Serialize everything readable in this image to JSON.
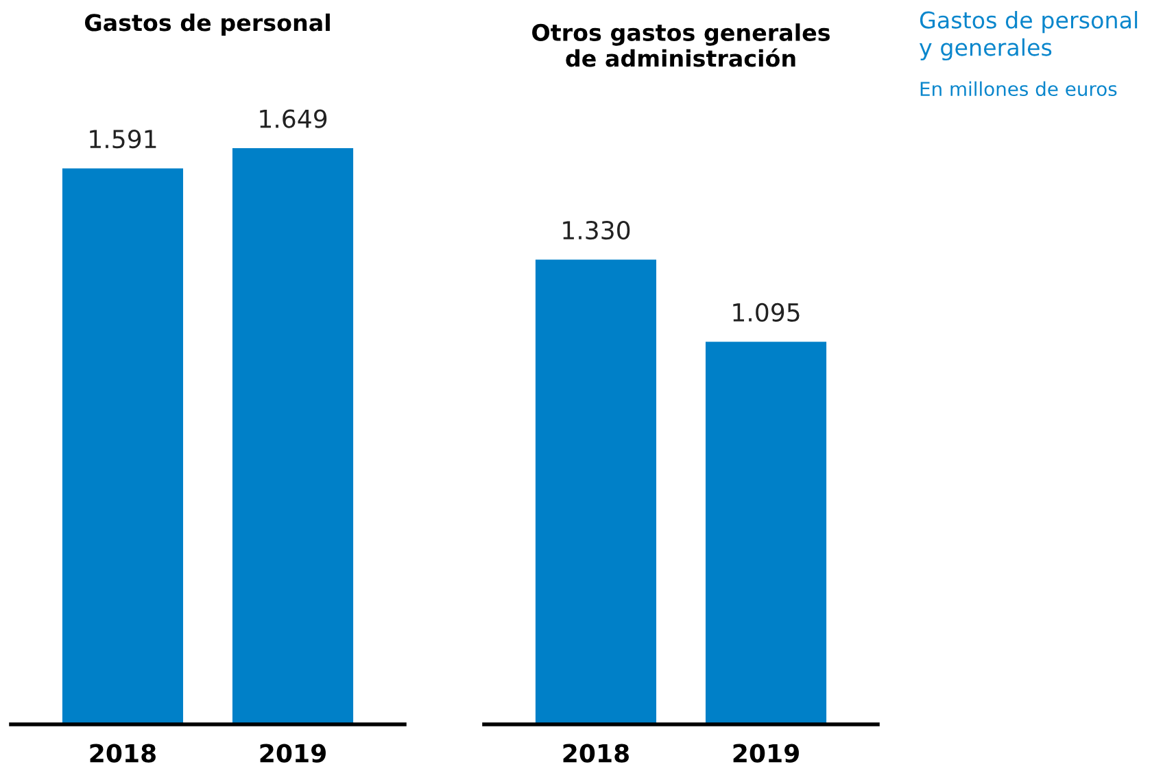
{
  "chart_data": [
    {
      "type": "bar",
      "title": "Gastos de personal",
      "categories": [
        "2018",
        "2019"
      ],
      "values": [
        1591,
        1649
      ],
      "value_labels": [
        "1.591",
        "1.649"
      ],
      "color": "#0080c8",
      "tick_labels": "x",
      "grid": false,
      "legend": false
    },
    {
      "type": "bar",
      "title": "Otros gastos generales\nde administración",
      "categories": [
        "2018",
        "2019"
      ],
      "values": [
        1330,
        1095
      ],
      "value_labels": [
        "1.330",
        "1.095"
      ],
      "color": "#0080c8",
      "tick_labels": "x",
      "grid": false,
      "legend": false
    },
    {
      "type": "other",
      "title": "Gastos de personal\ny generales",
      "subtitle": "En millones de euros"
    }
  ]
}
